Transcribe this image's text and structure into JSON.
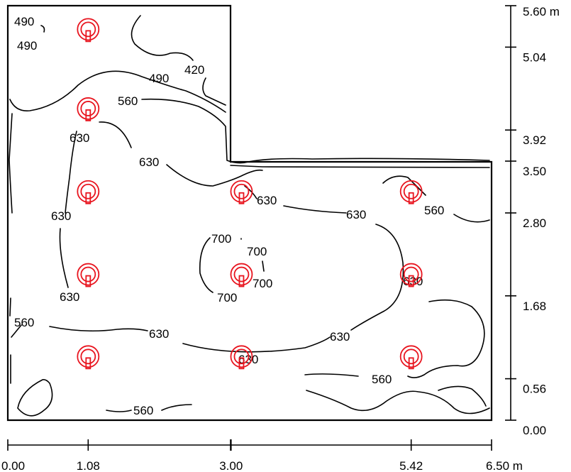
{
  "colors": {
    "luminaire": "#e8141e",
    "lines": "#000000"
  },
  "axes": {
    "x": {
      "unit": "m",
      "ticks": [
        "0.00",
        "1.08",
        "3.00",
        "5.42",
        "6.50"
      ],
      "values": [
        0,
        1.08,
        3.0,
        5.42,
        6.5
      ]
    },
    "y": {
      "unit": "m",
      "ticks": [
        "0.00",
        "0.56",
        "1.68",
        "2.80",
        "3.50",
        "3.92",
        "5.04",
        "5.60"
      ],
      "values": [
        0,
        0.56,
        1.68,
        2.8,
        3.5,
        3.92,
        5.04,
        5.6
      ]
    }
  },
  "contour_labels": [
    "490",
    "490",
    "420",
    "490",
    "560",
    "630",
    "630",
    "630",
    "630",
    "630",
    "560",
    "700",
    "700",
    "700",
    "700",
    "630",
    "630",
    "560",
    "630",
    "630",
    "630",
    "560",
    "560"
  ],
  "luminaires": [
    {
      "x": 1.08,
      "y": 5.28
    },
    {
      "x": 1.08,
      "y": 4.21
    },
    {
      "x": 1.08,
      "y": 3.09
    },
    {
      "x": 1.08,
      "y": 1.97
    },
    {
      "x": 1.08,
      "y": 0.86
    },
    {
      "x": 3.14,
      "y": 3.09
    },
    {
      "x": 3.14,
      "y": 1.97
    },
    {
      "x": 3.14,
      "y": 0.86
    },
    {
      "x": 5.42,
      "y": 3.09
    },
    {
      "x": 5.42,
      "y": 1.97
    },
    {
      "x": 5.42,
      "y": 0.86
    }
  ]
}
